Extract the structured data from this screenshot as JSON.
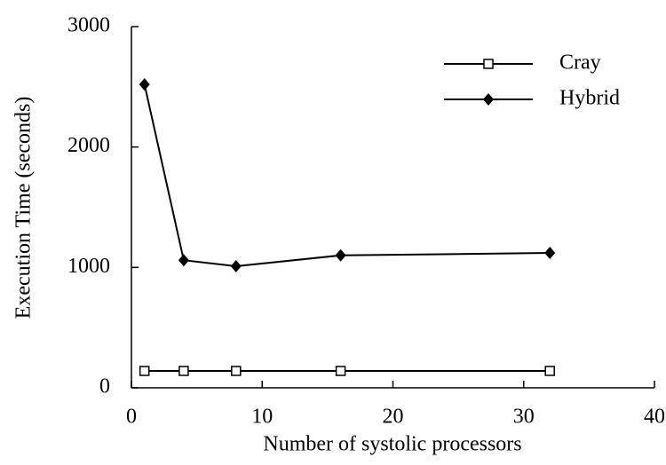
{
  "chart_data": {
    "type": "line",
    "x_label": "Number of systolic processors",
    "y_label": "Execution Time (seconds)",
    "x": [
      1,
      4,
      8,
      16,
      32
    ],
    "series": [
      {
        "name": "Cray",
        "color": "#000000",
        "marker": "open-square",
        "values": [
          140,
          140,
          140,
          140,
          140
        ]
      },
      {
        "name": "Hybrid",
        "color": "#000000",
        "marker": "filled-diamond",
        "values": [
          2520,
          1060,
          1010,
          1100,
          1120
        ]
      }
    ],
    "xlim": [
      0,
      40
    ],
    "xticks": [
      0,
      10,
      20,
      30,
      40
    ],
    "ylim": [
      0,
      3000
    ],
    "yticks": [
      0,
      1000,
      2000,
      3000
    ],
    "legend": "upper-right"
  }
}
